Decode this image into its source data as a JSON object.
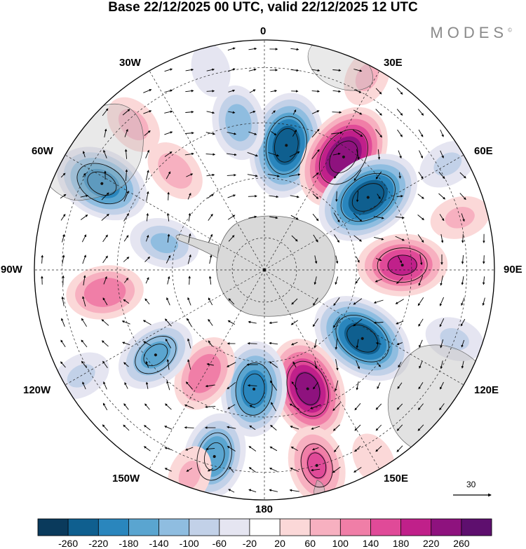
{
  "title": "Base 22/12/2025 00 UTC, valid 22/12/2025 12 UTC",
  "brand": {
    "text": "MODES",
    "mark": "©"
  },
  "longitude_labels": [
    "0",
    "30E",
    "60E",
    "90E",
    "120E",
    "150E",
    "180",
    "150W",
    "120W",
    "90W",
    "60W",
    "30W"
  ],
  "vector_scale": {
    "label": "30"
  },
  "colorbar": {
    "ticks": [
      "-260",
      "-220",
      "-180",
      "-140",
      "-100",
      "-60",
      "-20",
      "20",
      "60",
      "100",
      "140",
      "180",
      "220",
      "260"
    ],
    "colors": [
      "#0a3a5c",
      "#0f5f8f",
      "#2a86bd",
      "#5aa5d0",
      "#8fbde0",
      "#c2d1e8",
      "#e5e5f1",
      "#ffffff",
      "#fbd8d8",
      "#f7b0c0",
      "#f07ea7",
      "#e04a98",
      "#c0208a",
      "#8e127e",
      "#5e0f6e"
    ]
  },
  "anomalies": [
    {
      "lon": 10,
      "r": 0.55,
      "value": -240
    },
    {
      "lon": 350,
      "r": 0.65,
      "value": -120
    },
    {
      "lon": 35,
      "r": 0.6,
      "value": 255
    },
    {
      "lon": 55,
      "r": 0.55,
      "value": -250
    },
    {
      "lon": 88,
      "r": 0.6,
      "value": 180
    },
    {
      "lon": 125,
      "r": 0.52,
      "value": -240
    },
    {
      "lon": 160,
      "r": 0.55,
      "value": 230
    },
    {
      "lon": 185,
      "r": 0.52,
      "value": -200
    },
    {
      "lon": 165,
      "r": 0.88,
      "value": 140
    },
    {
      "lon": 195,
      "r": 0.84,
      "value": -170
    },
    {
      "lon": 210,
      "r": 0.52,
      "value": 130
    },
    {
      "lon": 232,
      "r": 0.6,
      "value": -150
    },
    {
      "lon": 262,
      "r": 0.7,
      "value": 130
    },
    {
      "lon": 298,
      "r": 0.8,
      "value": -200
    },
    {
      "lon": 285,
      "r": 0.45,
      "value": -100
    },
    {
      "lon": 318,
      "r": 0.58,
      "value": 80
    },
    {
      "lon": 318,
      "r": 0.85,
      "value": 70
    },
    {
      "lon": 28,
      "r": 0.95,
      "value": 60
    },
    {
      "lon": 60,
      "r": 0.92,
      "value": -60
    },
    {
      "lon": 75,
      "r": 0.88,
      "value": 60
    },
    {
      "lon": 110,
      "r": 0.88,
      "value": -60
    },
    {
      "lon": 150,
      "r": 0.95,
      "value": 40
    },
    {
      "lon": 240,
      "r": 0.92,
      "value": -60
    },
    {
      "lon": 200,
      "r": 0.95,
      "value": 60
    },
    {
      "lon": 345,
      "r": 0.9,
      "value": -40
    }
  ]
}
